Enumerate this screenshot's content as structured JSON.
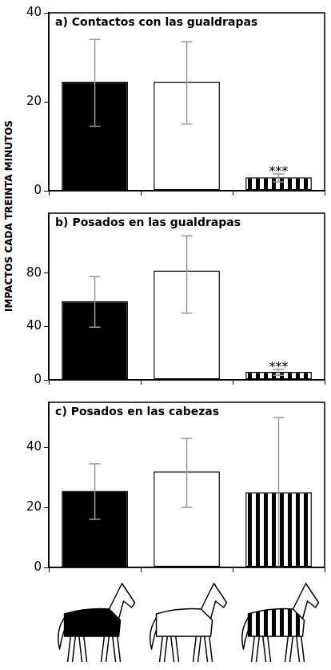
{
  "chart_data": [
    {
      "type": "bar",
      "title": "a) Contactos con las gualdrapas",
      "categories": [
        null,
        null,
        null
      ],
      "values": [
        24.5,
        24.5,
        3
      ],
      "error_low": [
        14.5,
        15,
        2
      ],
      "error_high": [
        34,
        33.5,
        3.8
      ],
      "colors": [
        "#000000",
        "#ffffff",
        "#000000"
      ],
      "annotations": [
        null,
        null,
        "***"
      ],
      "ylim": [
        0,
        40
      ],
      "yticks": [
        0,
        20,
        40
      ],
      "grid": false,
      "tick_labels": "y"
    },
    {
      "type": "bar",
      "title": "b) Posados en las gualdrapas",
      "ylabel": "IMPACTOS CADA TREINTA MINUTOS",
      "categories": [
        null,
        null,
        null
      ],
      "values": [
        59,
        82,
        6
      ],
      "error_low": [
        39.5,
        50,
        3.5
      ],
      "error_high": [
        77.5,
        108,
        8
      ],
      "colors": [
        "#000000",
        "#ffffff",
        "#000000"
      ],
      "annotations": [
        null,
        null,
        "***"
      ],
      "ylim": [
        0,
        125
      ],
      "yticks": [
        0,
        40,
        80
      ],
      "grid": false,
      "tick_labels": "y"
    },
    {
      "type": "bar",
      "title": "c) Posados en las cabezas",
      "categories": [
        null,
        null,
        null
      ],
      "values": [
        25.5,
        32,
        25
      ],
      "error_low": [
        16,
        20,
        0
      ],
      "error_high": [
        34.5,
        43,
        50
      ],
      "colors": [
        "#000000",
        "#ffffff",
        "#000000"
      ],
      "ylim": [
        0,
        55
      ],
      "yticks": [
        0,
        20,
        40
      ],
      "grid": false,
      "tick_labels": "y"
    }
  ]
}
